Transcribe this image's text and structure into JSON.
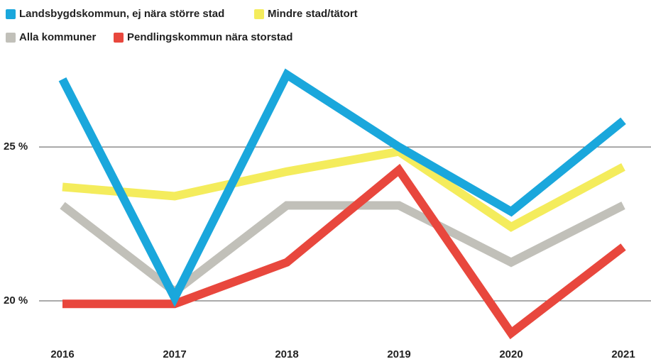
{
  "chart_data": {
    "type": "line",
    "categories": [
      "2016",
      "2017",
      "2018",
      "2019",
      "2020",
      "2021"
    ],
    "series": [
      {
        "name": "Landsbygdskommun, ej nära större stad",
        "color": "#1aa7dc",
        "values": [
          27.2,
          20.1,
          27.35,
          25.0,
          22.9,
          25.85
        ]
      },
      {
        "name": "Mindre stad/tätort",
        "color": "#f4ec5c",
        "values": [
          23.7,
          23.4,
          24.2,
          24.85,
          22.4,
          24.35
        ]
      },
      {
        "name": "Alla kommuner",
        "color": "#c1c0b9",
        "values": [
          23.1,
          20.3,
          23.1,
          23.1,
          21.25,
          23.1
        ]
      },
      {
        "name": "Pendlingskommun nära storstad",
        "color": "#e8473d",
        "values": [
          19.9,
          19.9,
          21.25,
          24.25,
          18.95,
          21.75
        ]
      }
    ],
    "ylim": [
      18.5,
      28
    ],
    "yticks": [
      {
        "value": 20,
        "label": "20 %"
      },
      {
        "value": 25,
        "label": "25 %"
      }
    ],
    "grid": true
  }
}
